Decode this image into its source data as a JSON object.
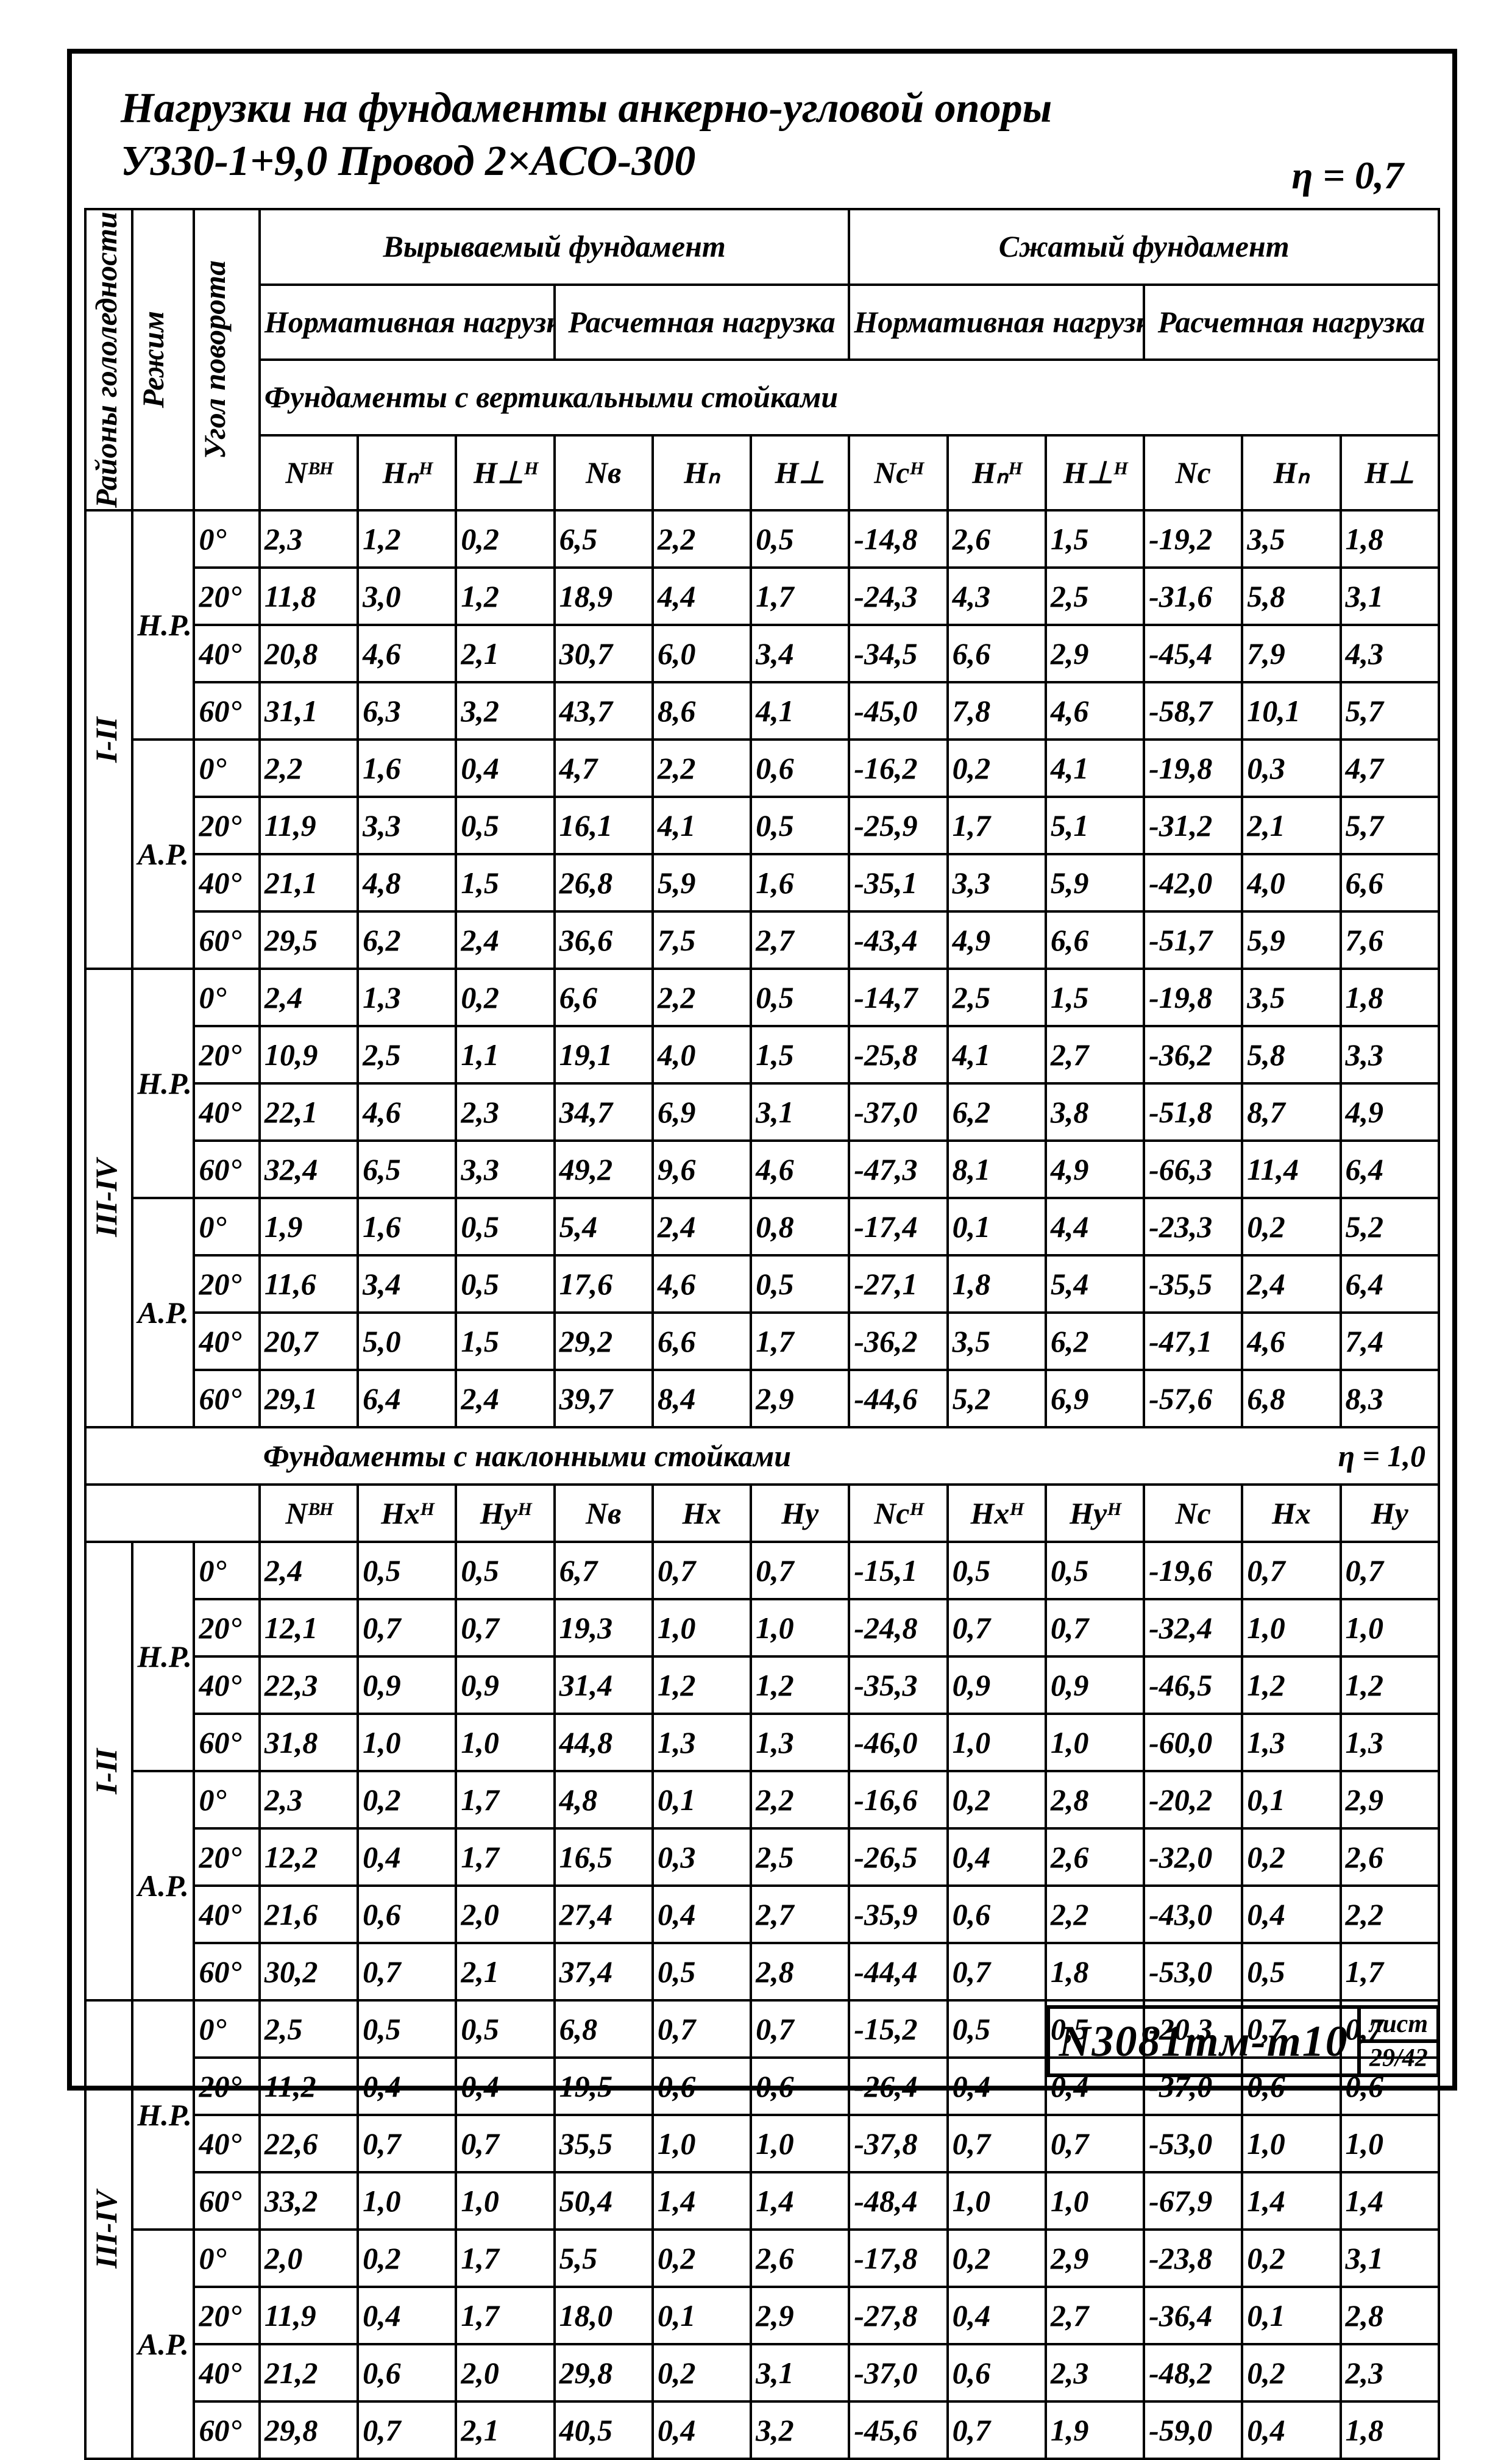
{
  "title": {
    "line1": "Нагрузки на фундаменты анкерно-угловой опоры",
    "line2": "У330-1+9,0   Провод 2×АСО-300",
    "eta": "η = 0,7"
  },
  "row_labels": {
    "rl": "Районы гололедности",
    "rej": "Режим",
    "ang": "Угол поворота",
    "pullout": "Вырываемый фундамент",
    "compress": "Сжатый фундамент",
    "norm": "Нормативная нагрузка",
    "calc": "Расчетная нагрузка",
    "section_v": "Фундаменты с вертикальными стойками",
    "section_n": "Фундаменты с наклонными стойками",
    "section_n_eta": "η = 1,0"
  },
  "sym_v": [
    "Nᴮᴴ",
    "Hₙᴴ",
    "H⊥ᴴ",
    "Nв",
    "Hₙ",
    "H⊥",
    "Ncᴴ",
    "Hₙᴴ",
    "H⊥ᴴ",
    "Nc",
    "Hₙ",
    "H⊥"
  ],
  "sym_n": [
    "Nᴮᴴ",
    "Hxᴴ",
    "Hyᴴ",
    "Nв",
    "Hx",
    "Hy",
    "Ncᴴ",
    "Hxᴴ",
    "Hyᴴ",
    "Nc",
    "Hx",
    "Hy"
  ],
  "blocks_v": [
    {
      "region": "I-II",
      "groups": [
        {
          "mode": "Н.Р.",
          "rows": [
            {
              "a": "0°",
              "v": [
                "2,3",
                "1,2",
                "0,2",
                "6,5",
                "2,2",
                "0,5",
                "-14,8",
                "2,6",
                "1,5",
                "-19,2",
                "3,5",
                "1,8"
              ]
            },
            {
              "a": "20°",
              "v": [
                "11,8",
                "3,0",
                "1,2",
                "18,9",
                "4,4",
                "1,7",
                "-24,3",
                "4,3",
                "2,5",
                "-31,6",
                "5,8",
                "3,1"
              ]
            },
            {
              "a": "40°",
              "v": [
                "20,8",
                "4,6",
                "2,1",
                "30,7",
                "6,0",
                "3,4",
                "-34,5",
                "6,6",
                "2,9",
                "-45,4",
                "7,9",
                "4,3"
              ]
            },
            {
              "a": "60°",
              "v": [
                "31,1",
                "6,3",
                "3,2",
                "43,7",
                "8,6",
                "4,1",
                "-45,0",
                "7,8",
                "4,6",
                "-58,7",
                "10,1",
                "5,7"
              ]
            }
          ]
        },
        {
          "mode": "А.Р.",
          "rows": [
            {
              "a": "0°",
              "v": [
                "2,2",
                "1,6",
                "0,4",
                "4,7",
                "2,2",
                "0,6",
                "-16,2",
                "0,2",
                "4,1",
                "-19,8",
                "0,3",
                "4,7"
              ]
            },
            {
              "a": "20°",
              "v": [
                "11,9",
                "3,3",
                "0,5",
                "16,1",
                "4,1",
                "0,5",
                "-25,9",
                "1,7",
                "5,1",
                "-31,2",
                "2,1",
                "5,7"
              ]
            },
            {
              "a": "40°",
              "v": [
                "21,1",
                "4,8",
                "1,5",
                "26,8",
                "5,9",
                "1,6",
                "-35,1",
                "3,3",
                "5,9",
                "-42,0",
                "4,0",
                "6,6"
              ]
            },
            {
              "a": "60°",
              "v": [
                "29,5",
                "6,2",
                "2,4",
                "36,6",
                "7,5",
                "2,7",
                "-43,4",
                "4,9",
                "6,6",
                "-51,7",
                "5,9",
                "7,6"
              ]
            }
          ]
        }
      ]
    },
    {
      "region": "III-IV",
      "groups": [
        {
          "mode": "Н.Р.",
          "rows": [
            {
              "a": "0°",
              "v": [
                "2,4",
                "1,3",
                "0,2",
                "6,6",
                "2,2",
                "0,5",
                "-14,7",
                "2,5",
                "1,5",
                "-19,8",
                "3,5",
                "1,8"
              ]
            },
            {
              "a": "20°",
              "v": [
                "10,9",
                "2,5",
                "1,1",
                "19,1",
                "4,0",
                "1,5",
                "-25,8",
                "4,1",
                "2,7",
                "-36,2",
                "5,8",
                "3,3"
              ]
            },
            {
              "a": "40°",
              "v": [
                "22,1",
                "4,6",
                "2,3",
                "34,7",
                "6,9",
                "3,1",
                "-37,0",
                "6,2",
                "3,8",
                "-51,8",
                "8,7",
                "4,9"
              ]
            },
            {
              "a": "60°",
              "v": [
                "32,4",
                "6,5",
                "3,3",
                "49,2",
                "9,6",
                "4,6",
                "-47,3",
                "8,1",
                "4,9",
                "-66,3",
                "11,4",
                "6,4"
              ]
            }
          ]
        },
        {
          "mode": "А.Р.",
          "rows": [
            {
              "a": "0°",
              "v": [
                "1,9",
                "1,6",
                "0,5",
                "5,4",
                "2,4",
                "0,8",
                "-17,4",
                "0,1",
                "4,4",
                "-23,3",
                "0,2",
                "5,2"
              ]
            },
            {
              "a": "20°",
              "v": [
                "11,6",
                "3,4",
                "0,5",
                "17,6",
                "4,6",
                "0,5",
                "-27,1",
                "1,8",
                "5,4",
                "-35,5",
                "2,4",
                "6,4"
              ]
            },
            {
              "a": "40°",
              "v": [
                "20,7",
                "5,0",
                "1,5",
                "29,2",
                "6,6",
                "1,7",
                "-36,2",
                "3,5",
                "6,2",
                "-47,1",
                "4,6",
                "7,4"
              ]
            },
            {
              "a": "60°",
              "v": [
                "29,1",
                "6,4",
                "2,4",
                "39,7",
                "8,4",
                "2,9",
                "-44,6",
                "5,2",
                "6,9",
                "-57,6",
                "6,8",
                "8,3"
              ]
            }
          ]
        }
      ]
    }
  ],
  "blocks_n": [
    {
      "region": "I-II",
      "groups": [
        {
          "mode": "Н.Р.",
          "rows": [
            {
              "a": "0°",
              "v": [
                "2,4",
                "0,5",
                "0,5",
                "6,7",
                "0,7",
                "0,7",
                "-15,1",
                "0,5",
                "0,5",
                "-19,6",
                "0,7",
                "0,7"
              ]
            },
            {
              "a": "20°",
              "v": [
                "12,1",
                "0,7",
                "0,7",
                "19,3",
                "1,0",
                "1,0",
                "-24,8",
                "0,7",
                "0,7",
                "-32,4",
                "1,0",
                "1,0"
              ]
            },
            {
              "a": "40°",
              "v": [
                "22,3",
                "0,9",
                "0,9",
                "31,4",
                "1,2",
                "1,2",
                "-35,3",
                "0,9",
                "0,9",
                "-46,5",
                "1,2",
                "1,2"
              ]
            },
            {
              "a": "60°",
              "v": [
                "31,8",
                "1,0",
                "1,0",
                "44,8",
                "1,3",
                "1,3",
                "-46,0",
                "1,0",
                "1,0",
                "-60,0",
                "1,3",
                "1,3"
              ]
            }
          ]
        },
        {
          "mode": "А.Р.",
          "rows": [
            {
              "a": "0°",
              "v": [
                "2,3",
                "0,2",
                "1,7",
                "4,8",
                "0,1",
                "2,2",
                "-16,6",
                "0,2",
                "2,8",
                "-20,2",
                "0,1",
                "2,9"
              ]
            },
            {
              "a": "20°",
              "v": [
                "12,2",
                "0,4",
                "1,7",
                "16,5",
                "0,3",
                "2,5",
                "-26,5",
                "0,4",
                "2,6",
                "-32,0",
                "0,2",
                "2,6"
              ]
            },
            {
              "a": "40°",
              "v": [
                "21,6",
                "0,6",
                "2,0",
                "27,4",
                "0,4",
                "2,7",
                "-35,9",
                "0,6",
                "2,2",
                "-43,0",
                "0,4",
                "2,2"
              ]
            },
            {
              "a": "60°",
              "v": [
                "30,2",
                "0,7",
                "2,1",
                "37,4",
                "0,5",
                "2,8",
                "-44,4",
                "0,7",
                "1,8",
                "-53,0",
                "0,5",
                "1,7"
              ]
            }
          ]
        }
      ]
    },
    {
      "region": "III-IV",
      "groups": [
        {
          "mode": "Н.Р.",
          "rows": [
            {
              "a": "0°",
              "v": [
                "2,5",
                "0,5",
                "0,5",
                "6,8",
                "0,7",
                "0,7",
                "-15,2",
                "0,5",
                "0,5",
                "-20,3",
                "0,7",
                "0,7"
              ]
            },
            {
              "a": "20°",
              "v": [
                "11,2",
                "0,4",
                "0,4",
                "19,5",
                "0,6",
                "0,6",
                "-26,4",
                "0,4",
                "0,4",
                "-37,0",
                "0,6",
                "0,6"
              ]
            },
            {
              "a": "40°",
              "v": [
                "22,6",
                "0,7",
                "0,7",
                "35,5",
                "1,0",
                "1,0",
                "-37,8",
                "0,7",
                "0,7",
                "-53,0",
                "1,0",
                "1,0"
              ]
            },
            {
              "a": "60°",
              "v": [
                "33,2",
                "1,0",
                "1,0",
                "50,4",
                "1,4",
                "1,4",
                "-48,4",
                "1,0",
                "1,0",
                "-67,9",
                "1,4",
                "1,4"
              ]
            }
          ]
        },
        {
          "mode": "А.Р.",
          "rows": [
            {
              "a": "0°",
              "v": [
                "2,0",
                "0,2",
                "1,7",
                "5,5",
                "0,2",
                "2,6",
                "-17,8",
                "0,2",
                "2,9",
                "-23,8",
                "0,2",
                "3,1"
              ]
            },
            {
              "a": "20°",
              "v": [
                "11,9",
                "0,4",
                "1,7",
                "18,0",
                "0,1",
                "2,9",
                "-27,8",
                "0,4",
                "2,7",
                "-36,4",
                "0,1",
                "2,8"
              ]
            },
            {
              "a": "40°",
              "v": [
                "21,2",
                "0,6",
                "2,0",
                "29,8",
                "0,2",
                "3,1",
                "-37,0",
                "0,6",
                "2,3",
                "-48,2",
                "0,2",
                "2,3"
              ]
            },
            {
              "a": "60°",
              "v": [
                "29,8",
                "0,7",
                "2,1",
                "40,5",
                "0,4",
                "3,2",
                "-45,6",
                "0,7",
                "1,9",
                "-59,0",
                "0,4",
                "1,8"
              ]
            }
          ]
        }
      ]
    }
  ],
  "stamp": {
    "code": "N3081тм-т10",
    "word": "лист",
    "num": "29/42"
  }
}
